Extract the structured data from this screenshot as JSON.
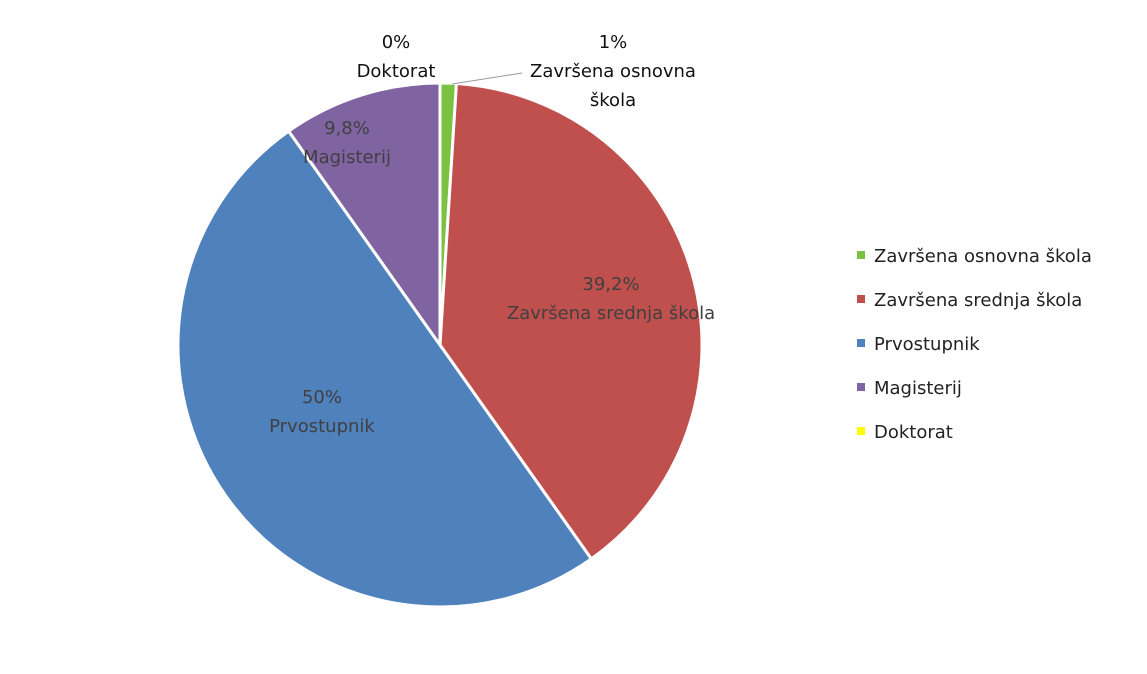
{
  "chart_data": {
    "type": "pie",
    "categories": [
      "Završena osnovna škola",
      "Završena srednja škola",
      "Prvostupnik",
      "Magisterij",
      "Doktorat"
    ],
    "values": [
      1,
      39.2,
      50,
      9.8,
      0
    ],
    "value_labels": [
      "1%",
      "39,2%",
      "50%",
      "9,8%",
      "0%"
    ],
    "colors": [
      "#7cc242",
      "#c0504d",
      "#4f81bd",
      "#8064a2",
      "#ffff00"
    ],
    "legend": "right"
  }
}
